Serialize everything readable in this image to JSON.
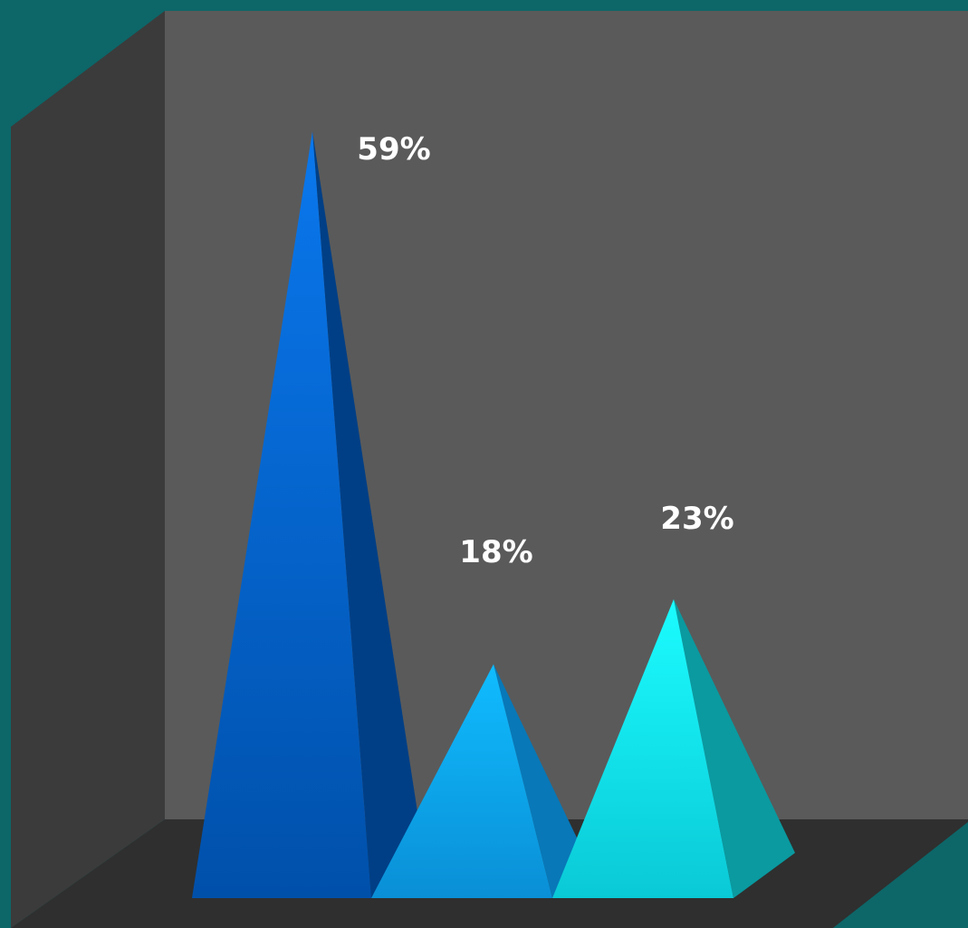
{
  "chart_data": {
    "type": "bar",
    "style": "3d-pyramid",
    "categories": [
      "",
      "",
      ""
    ],
    "values": [
      59,
      18,
      23
    ],
    "labels": [
      "59%",
      "18%",
      "23%"
    ],
    "ylim": [
      0,
      62
    ],
    "grid": false,
    "legend": "none",
    "colors": [
      "#0066dd",
      "#0fb2f5",
      "#12eef5"
    ]
  },
  "theme": {
    "background": "#0d6668",
    "back_wall": "#5a5a5a",
    "side_wall": "#3b3b3b",
    "floor": "#2f2f2f",
    "label_color": "#ffffff"
  }
}
